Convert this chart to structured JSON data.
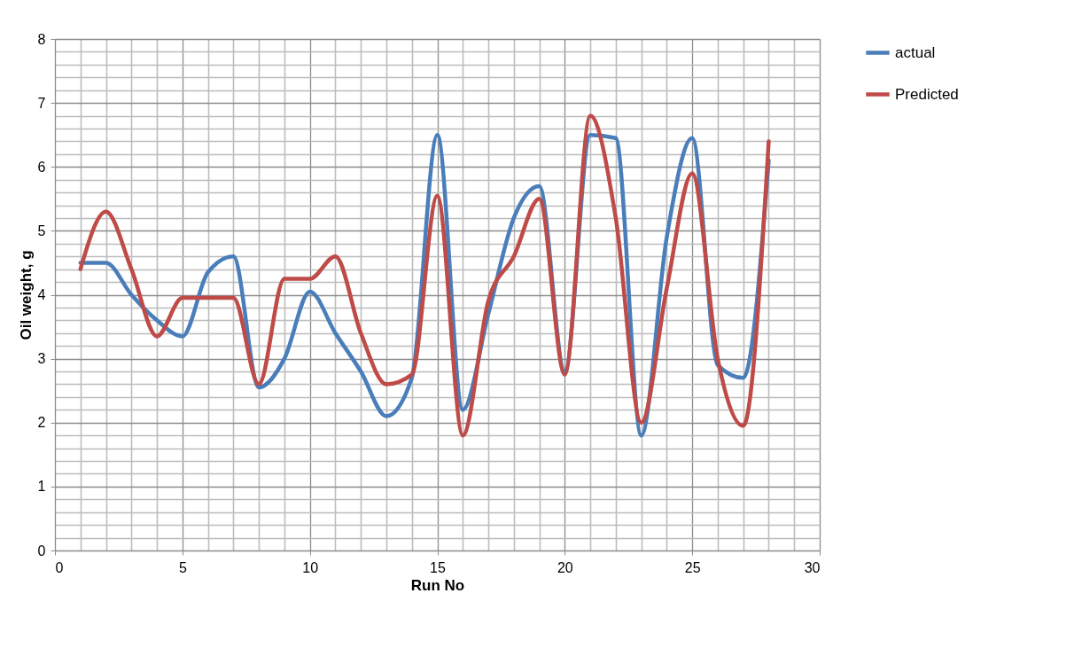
{
  "chart_data": {
    "type": "line",
    "xlabel": "Run No",
    "ylabel": "Oil weight, g",
    "x": [
      1,
      2,
      3,
      4,
      5,
      6,
      7,
      8,
      9,
      10,
      11,
      12,
      13,
      14,
      15,
      16,
      17,
      18,
      19,
      20,
      21,
      22,
      23,
      24,
      25,
      26,
      27,
      28
    ],
    "series": [
      {
        "name": "actual",
        "color": "#4a7ebb",
        "values": [
          4.5,
          4.5,
          4.0,
          3.6,
          3.35,
          4.35,
          4.6,
          2.55,
          3.0,
          4.05,
          3.4,
          2.8,
          2.1,
          2.7,
          6.5,
          2.2,
          3.7,
          5.2,
          5.7,
          2.8,
          6.5,
          6.45,
          1.8,
          4.9,
          6.45,
          2.9,
          2.7,
          6.1
        ]
      },
      {
        "name": "Predicted",
        "color": "#be4b48",
        "values": [
          4.4,
          5.3,
          4.4,
          3.35,
          3.95,
          3.95,
          3.95,
          2.6,
          4.25,
          4.25,
          4.6,
          3.4,
          2.6,
          2.75,
          5.55,
          1.8,
          3.9,
          4.6,
          5.5,
          2.75,
          6.8,
          5.2,
          2.0,
          4.1,
          5.9,
          3.0,
          1.95,
          6.4
        ]
      }
    ],
    "xlim": [
      0,
      30
    ],
    "xticks": [
      0,
      {
        "value": 1,
        "label": null
      },
      {
        "value": 2,
        "label": null
      },
      {
        "value": 3,
        "label": null
      },
      {
        "value": 4,
        "label": null
      },
      5,
      {
        "value": 6,
        "label": null
      },
      {
        "value": 7,
        "label": null
      },
      {
        "value": 8,
        "label": null
      },
      {
        "value": 9,
        "label": null
      },
      10,
      {
        "value": 11,
        "label": null
      },
      {
        "value": 12,
        "label": null
      },
      {
        "value": 13,
        "label": null
      },
      {
        "value": 14,
        "label": null
      },
      15,
      {
        "value": 16,
        "label": null
      },
      {
        "value": 17,
        "label": null
      },
      {
        "value": 18,
        "label": null
      },
      {
        "value": 19,
        "label": null
      },
      20,
      {
        "value": 21,
        "label": null
      },
      {
        "value": 22,
        "label": null
      },
      {
        "value": 23,
        "label": null
      },
      {
        "value": 24,
        "label": null
      },
      25,
      {
        "value": 26,
        "label": null
      },
      {
        "value": 27,
        "label": null
      },
      {
        "value": 28,
        "label": null
      },
      {
        "value": 29,
        "label": null
      },
      30
    ],
    "ylim": [
      0,
      8
    ],
    "yticks": [
      0,
      {
        "value": 0.2,
        "label": null
      },
      {
        "value": 0.4,
        "label": null
      },
      {
        "value": 0.6,
        "label": null
      },
      {
        "value": 0.8,
        "label": null
      },
      1,
      {
        "value": 1.2,
        "label": null
      },
      {
        "value": 1.4,
        "label": null
      },
      {
        "value": 1.6,
        "label": null
      },
      {
        "value": 1.8,
        "label": null
      },
      2,
      {
        "value": 2.2,
        "label": null
      },
      {
        "value": 2.4,
        "label": null
      },
      {
        "value": 2.6,
        "label": null
      },
      {
        "value": 2.8,
        "label": null
      },
      3,
      {
        "value": 3.2,
        "label": null
      },
      {
        "value": 3.4,
        "label": null
      },
      {
        "value": 3.6,
        "label": null
      },
      {
        "value": 3.8,
        "label": null
      },
      4,
      {
        "value": 4.2,
        "label": null
      },
      {
        "value": 4.4,
        "label": null
      },
      {
        "value": 4.6,
        "label": null
      },
      {
        "value": 4.8,
        "label": null
      },
      5,
      {
        "value": 5.2,
        "label": null
      },
      {
        "value": 5.4,
        "label": null
      },
      {
        "value": 5.6,
        "label": null
      },
      {
        "value": 5.8,
        "label": null
      },
      6,
      {
        "value": 6.2,
        "label": null
      },
      {
        "value": 6.4,
        "label": null
      },
      {
        "value": 6.6,
        "label": null
      },
      {
        "value": 6.8,
        "label": null
      },
      7,
      {
        "value": 7.2,
        "label": null
      },
      {
        "value": 7.4,
        "label": null
      },
      {
        "value": 7.6,
        "label": null
      },
      {
        "value": 7.8,
        "label": null
      },
      8
    ],
    "grid": true,
    "legend": "right",
    "marker": "none",
    "line_style": "solid"
  }
}
